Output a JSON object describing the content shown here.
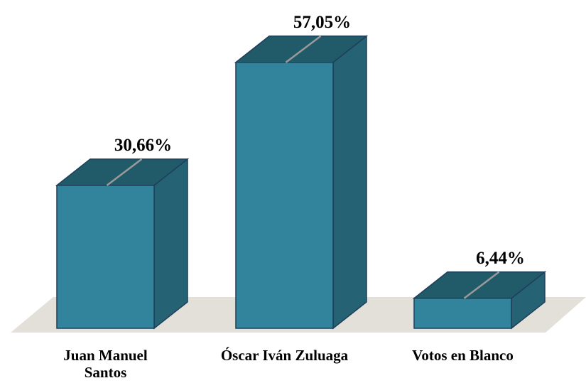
{
  "chart_data": {
    "type": "bar3d",
    "categories": [
      "Juan Manuel Santos",
      "Óscar Iván Zuluaga",
      "Votos en Blanco"
    ],
    "values": [
      30.66,
      57.05,
      6.44
    ],
    "value_labels": [
      "30,66%",
      "57,05%",
      "6,44%"
    ],
    "color": "#31849b"
  }
}
